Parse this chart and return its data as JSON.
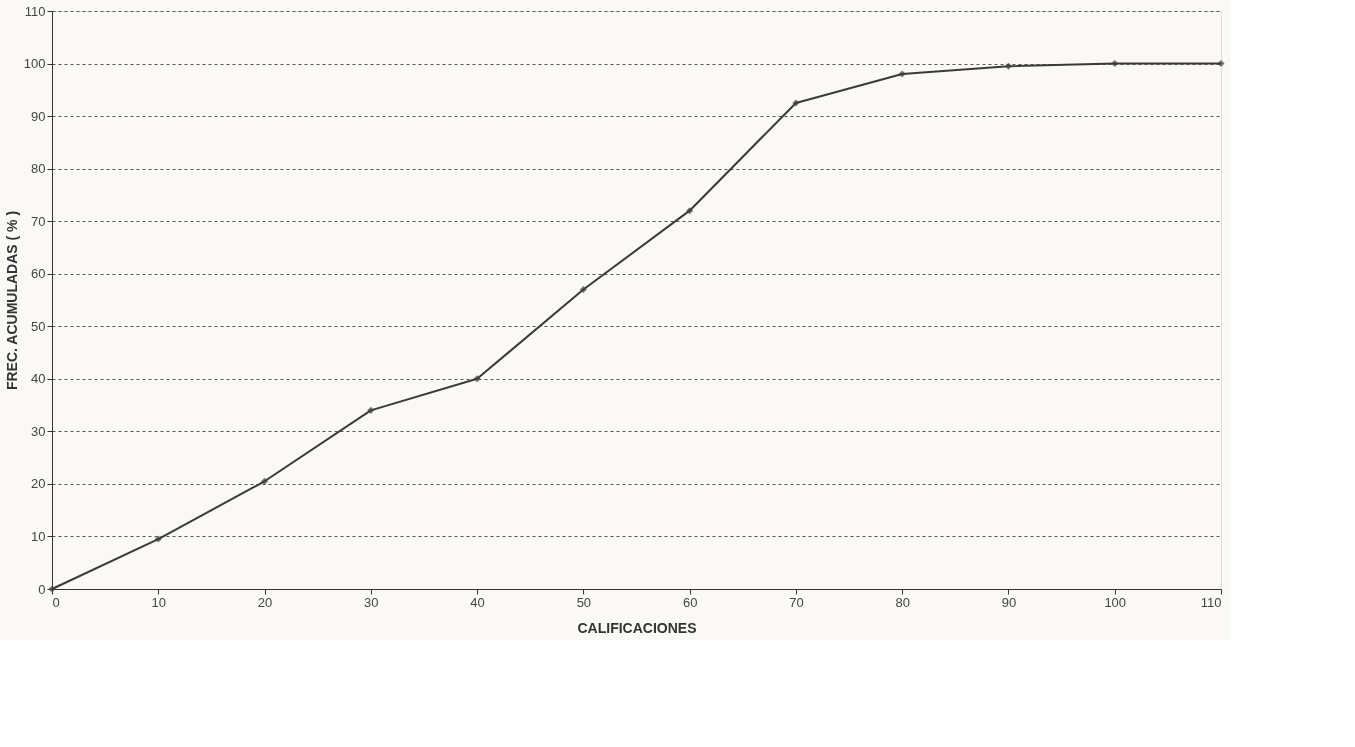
{
  "chart_data": {
    "type": "line",
    "xlabel": "CALIFICACIONES",
    "ylabel": "FREC. ACUMULADAS ( % )",
    "x": [
      0,
      10,
      20,
      30,
      40,
      50,
      60,
      70,
      80,
      90,
      100,
      110
    ],
    "series": [
      {
        "color": "#3a3a3a",
        "values": [
          0,
          9.5,
          20.5,
          34,
          40,
          57,
          72,
          92.5,
          98,
          99.5,
          100,
          100
        ]
      }
    ],
    "xlim": [
      0,
      110
    ],
    "xticks": [
      0,
      10,
      20,
      30,
      40,
      50,
      60,
      70,
      80,
      90,
      100,
      110
    ],
    "ylim": [
      0,
      110
    ],
    "yticks": [
      0,
      10,
      20,
      30,
      40,
      50,
      60,
      70,
      80,
      90,
      100,
      110
    ],
    "grid": "y",
    "marker": "diamond",
    "line_style": "solid"
  }
}
